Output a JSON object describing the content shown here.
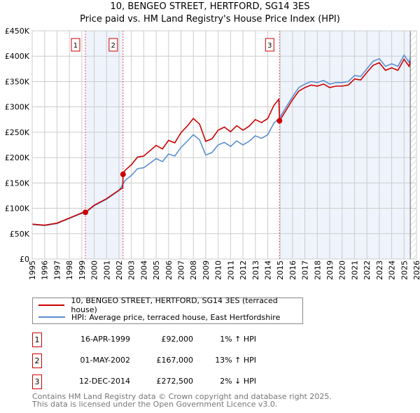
{
  "chart_data": {
    "type": "line",
    "title": "10, BENGEO STREET, HERTFORD, SG14 3ES",
    "subtitle": "Price paid vs. HM Land Registry's House Price Index (HPI)",
    "xlim": [
      1995,
      2026
    ],
    "ylim": [
      0,
      450000
    ],
    "y_ticks": [
      0,
      50000,
      100000,
      150000,
      200000,
      250000,
      300000,
      350000,
      400000,
      450000
    ],
    "y_tick_labels": [
      "£0",
      "£50K",
      "£100K",
      "£150K",
      "£200K",
      "£250K",
      "£300K",
      "£350K",
      "£400K",
      "£450K"
    ],
    "x_ticks": [
      "1995",
      "1996",
      "1997",
      "1998",
      "1999",
      "2000",
      "2001",
      "2002",
      "2003",
      "2004",
      "2005",
      "2006",
      "2007",
      "2008",
      "2009",
      "2010",
      "2011",
      "2012",
      "2013",
      "2014",
      "2015",
      "2016",
      "2017",
      "2018",
      "2019",
      "2020",
      "2021",
      "2022",
      "2023",
      "2024",
      "2025",
      "2026"
    ],
    "grid": true,
    "data_end": 2025.5,
    "series": [
      {
        "name": "10, BENGEO STREET, HERTFORD, SG14 3ES (terraced house)",
        "color": "#cc0000",
        "x": [
          1995,
          1996,
          1997,
          1998,
          1999,
          1999.29,
          2000,
          2001,
          2002,
          2002.3,
          2002.33,
          2002.5,
          2003,
          2003.5,
          2004,
          2005,
          2005.5,
          2006,
          2006.5,
          2007,
          2007.5,
          2008,
          2008.5,
          2009,
          2009.5,
          2010,
          2010.5,
          2011,
          2011.5,
          2012,
          2012.5,
          2013,
          2013.5,
          2014,
          2014.5,
          2014.9,
          2014.95,
          2015.5,
          2016,
          2016.5,
          2017,
          2017.5,
          2018,
          2018.5,
          2019,
          2019.5,
          2020,
          2020.5,
          2021,
          2021.5,
          2022,
          2022.5,
          2023,
          2023.5,
          2024,
          2024.5,
          2025,
          2025.4,
          2025.5
        ],
        "y": [
          68700,
          66700,
          70700,
          80800,
          91000,
          92000,
          106000,
          119000,
          136000,
          140000,
          167000,
          175000,
          186000,
          201000,
          203000,
          224000,
          217000,
          234000,
          229000,
          249000,
          262000,
          277000,
          266000,
          232000,
          237000,
          254000,
          260000,
          251000,
          263000,
          254000,
          262000,
          275000,
          269000,
          277000,
          303000,
          315000,
          272500,
          294000,
          314000,
          331000,
          338000,
          343000,
          341000,
          345000,
          338000,
          341000,
          341000,
          343000,
          355000,
          353000,
          368000,
          382000,
          387000,
          372000,
          377000,
          372000,
          394000,
          380000,
          390000
        ]
      },
      {
        "name": "HPI: Average price, terraced house, East Hertfordshire",
        "color": "#5b8fd0",
        "x": [
          1995,
          1996,
          1997,
          1998,
          1999,
          1999.29,
          2000,
          2001,
          2002,
          2002.33,
          2002.5,
          2003,
          2003.5,
          2004,
          2005,
          2005.5,
          2006,
          2006.5,
          2007,
          2007.5,
          2008,
          2008.5,
          2009,
          2009.5,
          2010,
          2010.5,
          2011,
          2011.5,
          2012,
          2012.5,
          2013,
          2013.5,
          2014,
          2014.5,
          2014.95,
          2015.5,
          2016,
          2016.5,
          2017,
          2017.5,
          2018,
          2018.5,
          2019,
          2019.5,
          2020,
          2020.5,
          2021,
          2021.5,
          2022,
          2022.5,
          2023,
          2023.5,
          2024,
          2024.5,
          2025,
          2025.4,
          2025.5
        ],
        "y": [
          68000,
          66000,
          70000,
          80000,
          90000,
          91000,
          105000,
          118000,
          135000,
          148000,
          155000,
          165000,
          178000,
          180000,
          198000,
          192000,
          207000,
          203000,
          220000,
          232000,
          245000,
          235000,
          205000,
          210000,
          225000,
          230000,
          222000,
          233000,
          225000,
          232000,
          243000,
          238000,
          245000,
          268000,
          278000,
          300000,
          320000,
          338000,
          345000,
          350000,
          348000,
          352000,
          345000,
          348000,
          348000,
          350000,
          362000,
          360000,
          375000,
          390000,
          395000,
          380000,
          385000,
          380000,
          402000,
          388000,
          398000
        ]
      }
    ],
    "sales": [
      {
        "label": "1",
        "x": 1999.29,
        "date": "16-APR-1999",
        "price": "£92,000",
        "value": 92000,
        "hpi": "1% ↑ HPI"
      },
      {
        "label": "2",
        "x": 2002.33,
        "date": "01-MAY-2002",
        "price": "£167,000",
        "value": 167000,
        "hpi": "13% ↑ HPI"
      },
      {
        "label": "3",
        "x": 2014.95,
        "date": "12-DEC-2014",
        "price": "£272,500",
        "value": 272500,
        "hpi": "2% ↓ HPI"
      }
    ]
  },
  "footer": {
    "line1": "Contains HM Land Registry data © Crown copyright and database right 2025.",
    "line2": "This data is licensed under the Open Government Licence v3.0."
  }
}
